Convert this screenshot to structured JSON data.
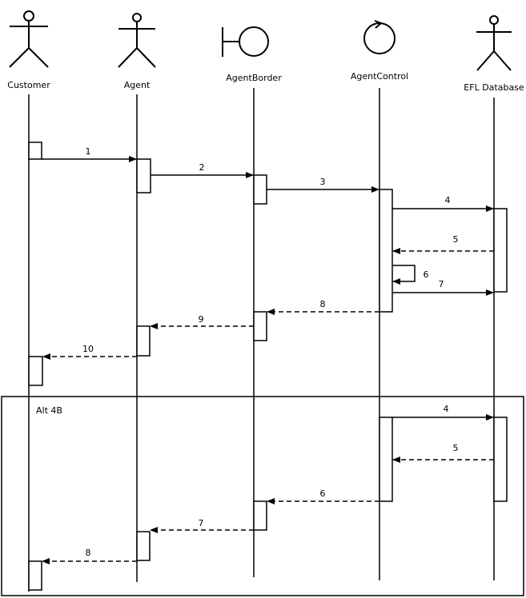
{
  "participants": [
    {
      "id": "customer",
      "label": "Customer",
      "kind": "actor"
    },
    {
      "id": "agent",
      "label": "Agent",
      "kind": "actor"
    },
    {
      "id": "agentborder",
      "label": "AgentBorder",
      "kind": "boundary"
    },
    {
      "id": "agentcontrol",
      "label": "AgentControl",
      "kind": "control"
    },
    {
      "id": "efldatabase",
      "label": "EFL Database",
      "kind": "actor"
    }
  ],
  "messages": [
    {
      "label": "1",
      "from": "customer",
      "to": "agent",
      "style": "solid"
    },
    {
      "label": "2",
      "from": "agent",
      "to": "agentborder",
      "style": "solid"
    },
    {
      "label": "3",
      "from": "agentborder",
      "to": "agentcontrol",
      "style": "solid"
    },
    {
      "label": "4",
      "from": "agentcontrol",
      "to": "efldatabase",
      "style": "solid"
    },
    {
      "label": "5",
      "from": "efldatabase",
      "to": "agentcontrol",
      "style": "dashed"
    },
    {
      "label": "6",
      "from": "agentcontrol",
      "to": "agentcontrol",
      "style": "solid"
    },
    {
      "label": "7",
      "from": "agentcontrol",
      "to": "efldatabase",
      "style": "solid"
    },
    {
      "label": "8",
      "from": "agentcontrol",
      "to": "agentborder",
      "style": "dashed"
    },
    {
      "label": "9",
      "from": "agentborder",
      "to": "agent",
      "style": "dashed"
    },
    {
      "label": "10",
      "from": "agent",
      "to": "customer",
      "style": "dashed"
    }
  ],
  "alt_fragment": {
    "label": "Alt 4B",
    "messages": [
      {
        "label": "4",
        "from": "agentcontrol",
        "to": "efldatabase",
        "style": "solid"
      },
      {
        "label": "5",
        "from": "efldatabase",
        "to": "agentcontrol",
        "style": "dashed"
      },
      {
        "label": "6",
        "from": "agentcontrol",
        "to": "agentborder",
        "style": "dashed"
      },
      {
        "label": "7",
        "from": "agentborder",
        "to": "agent",
        "style": "dashed"
      },
      {
        "label": "8",
        "from": "agent",
        "to": "customer",
        "style": "dashed"
      }
    ]
  }
}
